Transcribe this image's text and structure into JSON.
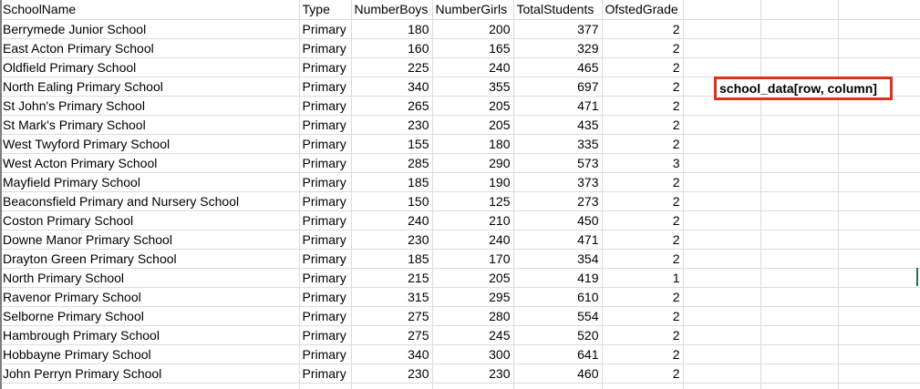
{
  "sheet": {
    "headers": [
      "SchoolName",
      "Type",
      "NumberBoys",
      "NumberGirls",
      "TotalStudents",
      "OfstedGrade"
    ],
    "rows": [
      [
        "Berrymede Junior School",
        "Primary",
        "180",
        "200",
        "377",
        "2"
      ],
      [
        "East Acton Primary School",
        "Primary",
        "160",
        "165",
        "329",
        "2"
      ],
      [
        "Oldfield Primary School",
        "Primary",
        "225",
        "240",
        "465",
        "2"
      ],
      [
        "North Ealing Primary School",
        "Primary",
        "340",
        "355",
        "697",
        "2"
      ],
      [
        "St John's Primary School",
        "Primary",
        "265",
        "205",
        "471",
        "2"
      ],
      [
        "St Mark's Primary School",
        "Primary",
        "230",
        "205",
        "435",
        "2"
      ],
      [
        "West Twyford Primary School",
        "Primary",
        "155",
        "180",
        "335",
        "2"
      ],
      [
        "West Acton Primary School",
        "Primary",
        "285",
        "290",
        "573",
        "3"
      ],
      [
        "Mayfield Primary School",
        "Primary",
        "185",
        "190",
        "373",
        "2"
      ],
      [
        "Beaconsfield Primary and Nursery School",
        "Primary",
        "150",
        "125",
        "273",
        "2"
      ],
      [
        "Coston Primary School",
        "Primary",
        "240",
        "210",
        "450",
        "2"
      ],
      [
        "Downe Manor Primary School",
        "Primary",
        "230",
        "240",
        "471",
        "2"
      ],
      [
        "Drayton Green Primary School",
        "Primary",
        "185",
        "170",
        "354",
        "2"
      ],
      [
        "North Primary School",
        "Primary",
        "215",
        "205",
        "419",
        "1"
      ],
      [
        "Ravenor Primary School",
        "Primary",
        "315",
        "295",
        "610",
        "2"
      ],
      [
        "Selborne Primary School",
        "Primary",
        "275",
        "280",
        "554",
        "2"
      ],
      [
        "Hambrough Primary School",
        "Primary",
        "275",
        "245",
        "520",
        "2"
      ],
      [
        "Hobbayne Primary School",
        "Primary",
        "340",
        "300",
        "641",
        "2"
      ],
      [
        "John Perryn Primary School",
        "Primary",
        "230",
        "230",
        "460",
        "2"
      ]
    ]
  },
  "annotation": {
    "text": "school_data[row, column]",
    "border_color": "#e0301e"
  },
  "colors": {
    "gridline": "#dcdcdc",
    "selection": "#1e7145"
  }
}
